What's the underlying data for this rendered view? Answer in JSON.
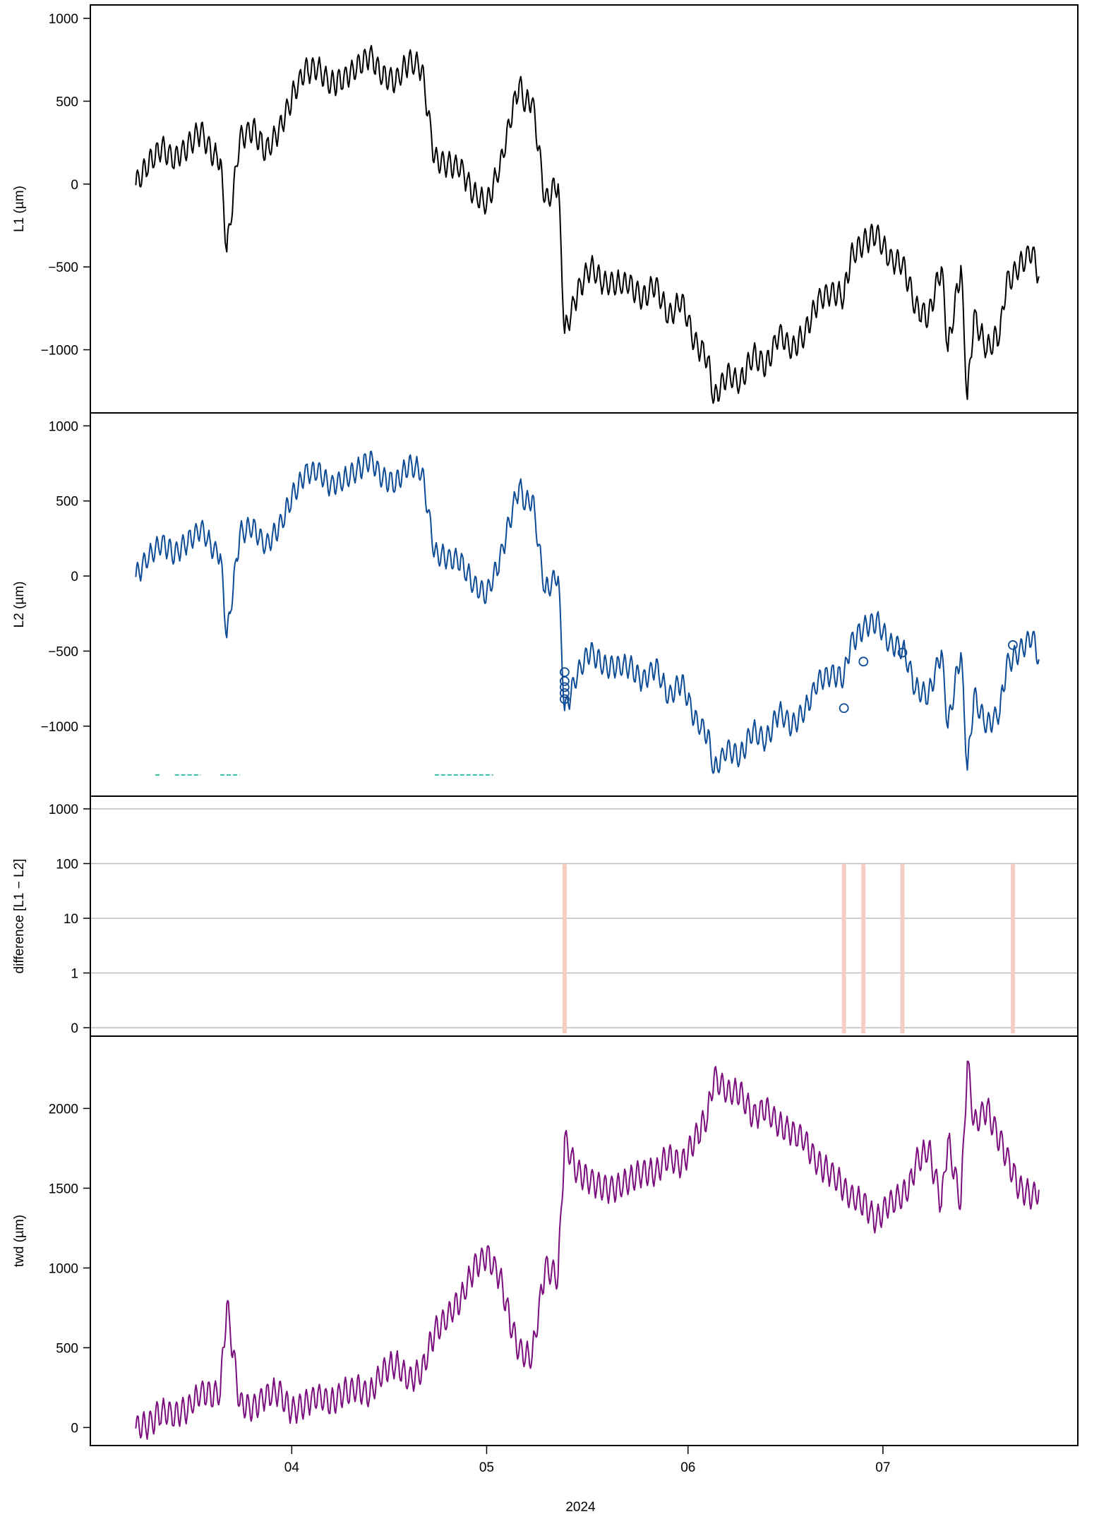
{
  "chart_data": [
    {
      "type": "line",
      "ylabel": "L1 (µm)",
      "ylim": [
        -1330,
        1030
      ],
      "yticks": [
        1000,
        500,
        0,
        -500,
        -1000
      ],
      "ytick_labels": [
        "1000",
        "500",
        "0",
        "−500",
        "−1000"
      ],
      "grid": false,
      "color": "#000000",
      "series": [
        {
          "x": [
            "2024-03-08",
            "2024-03-10",
            "2024-03-12",
            "2024-03-14",
            "2024-03-16",
            "2024-03-18",
            "2024-03-20",
            "2024-03-21",
            "2024-03-22",
            "2024-03-24",
            "2024-03-26",
            "2024-03-28",
            "2024-03-30",
            "2024-04-01",
            "2024-04-03",
            "2024-04-05",
            "2024-04-07",
            "2024-04-09",
            "2024-04-11",
            "2024-04-13",
            "2024-04-15",
            "2024-04-17",
            "2024-04-19",
            "2024-04-21",
            "2024-04-23",
            "2024-04-25",
            "2024-04-27",
            "2024-04-29",
            "2024-05-01",
            "2024-05-03",
            "2024-05-05",
            "2024-05-06",
            "2024-05-07",
            "2024-05-08",
            "2024-05-10",
            "2024-05-12",
            "2024-05-13",
            "2024-05-15",
            "2024-05-17",
            "2024-05-19",
            "2024-05-21",
            "2024-05-23",
            "2024-05-25",
            "2024-05-27",
            "2024-05-29",
            "2024-05-31",
            "2024-06-02",
            "2024-06-04",
            "2024-06-05",
            "2024-06-07",
            "2024-06-09",
            "2024-06-11",
            "2024-06-13",
            "2024-06-15",
            "2024-06-17",
            "2024-06-19",
            "2024-06-21",
            "2024-06-23",
            "2024-06-25",
            "2024-06-26",
            "2024-06-28",
            "2024-06-30",
            "2024-07-02",
            "2024-07-04",
            "2024-07-05",
            "2024-07-06",
            "2024-07-08",
            "2024-07-10",
            "2024-07-11",
            "2024-07-13",
            "2024-07-14",
            "2024-07-15",
            "2024-07-17",
            "2024-07-19",
            "2024-07-20",
            "2024-07-22",
            "2024-07-24",
            "2024-07-25"
          ],
          "y": [
            0,
            130,
            220,
            150,
            230,
            320,
            170,
            150,
            -410,
            280,
            330,
            200,
            320,
            520,
            680,
            700,
            600,
            640,
            700,
            780,
            650,
            620,
            740,
            700,
            150,
            120,
            100,
            -60,
            -120,
            100,
            450,
            600,
            480,
            520,
            -100,
            10,
            -900,
            -650,
            -500,
            -600,
            -600,
            -600,
            -700,
            -600,
            -800,
            -700,
            -950,
            -1050,
            -1300,
            -1150,
            -1200,
            -1030,
            -1100,
            -900,
            -1000,
            -900,
            -700,
            -650,
            -680,
            -450,
            -350,
            -300,
            -450,
            -480,
            -600,
            -750,
            -800,
            -500,
            -1000,
            -500,
            -1300,
            -800,
            -1000,
            -900,
            -600,
            -500,
            -400,
            -560
          ]
        }
      ]
    },
    {
      "type": "line",
      "ylabel": "L2 (µm)",
      "ylim": [
        -1410,
        1030
      ],
      "yticks": [
        1000,
        500,
        0,
        -500,
        -1000
      ],
      "ytick_labels": [
        "1000",
        "500",
        "0",
        "−500",
        "−1000"
      ],
      "grid": false,
      "color": "#0f4c96",
      "series": [
        {
          "x": [
            "2024-03-08",
            "2024-03-10",
            "2024-03-12",
            "2024-03-14",
            "2024-03-16",
            "2024-03-18",
            "2024-03-20",
            "2024-03-21",
            "2024-03-22",
            "2024-03-24",
            "2024-03-26",
            "2024-03-28",
            "2024-03-30",
            "2024-04-01",
            "2024-04-03",
            "2024-04-05",
            "2024-04-07",
            "2024-04-09",
            "2024-04-11",
            "2024-04-13",
            "2024-04-15",
            "2024-04-17",
            "2024-04-19",
            "2024-04-21",
            "2024-04-23",
            "2024-04-25",
            "2024-04-27",
            "2024-04-29",
            "2024-05-01",
            "2024-05-03",
            "2024-05-05",
            "2024-05-06",
            "2024-05-07",
            "2024-05-08",
            "2024-05-10",
            "2024-05-12",
            "2024-05-13",
            "2024-05-15",
            "2024-05-17",
            "2024-05-19",
            "2024-05-21",
            "2024-05-23",
            "2024-05-25",
            "2024-05-27",
            "2024-05-29",
            "2024-05-31",
            "2024-06-02",
            "2024-06-04",
            "2024-06-05",
            "2024-06-07",
            "2024-06-09",
            "2024-06-11",
            "2024-06-13",
            "2024-06-15",
            "2024-06-17",
            "2024-06-19",
            "2024-06-21",
            "2024-06-23",
            "2024-06-25",
            "2024-06-26",
            "2024-06-28",
            "2024-06-30",
            "2024-07-02",
            "2024-07-04",
            "2024-07-05",
            "2024-07-06",
            "2024-07-08",
            "2024-07-10",
            "2024-07-11",
            "2024-07-13",
            "2024-07-14",
            "2024-07-15",
            "2024-07-17",
            "2024-07-19",
            "2024-07-20",
            "2024-07-22",
            "2024-07-24",
            "2024-07-25"
          ],
          "y": [
            0,
            130,
            220,
            150,
            230,
            320,
            170,
            150,
            -410,
            280,
            330,
            200,
            320,
            520,
            680,
            700,
            600,
            640,
            700,
            780,
            650,
            620,
            740,
            700,
            150,
            120,
            100,
            -60,
            -120,
            100,
            450,
            600,
            480,
            520,
            -100,
            10,
            -900,
            -650,
            -500,
            -600,
            -600,
            -600,
            -700,
            -600,
            -800,
            -700,
            -950,
            -1050,
            -1300,
            -1150,
            -1200,
            -1030,
            -1100,
            -900,
            -1000,
            -900,
            -700,
            -650,
            -680,
            -450,
            -350,
            -300,
            -450,
            -480,
            -600,
            -750,
            -800,
            -500,
            -1000,
            -500,
            -1300,
            -800,
            -1000,
            -900,
            -600,
            -500,
            -400,
            -560
          ]
        }
      ],
      "markers": [
        {
          "x": "2024-05-13",
          "y": -640
        },
        {
          "x": "2024-05-13",
          "y": -700
        },
        {
          "x": "2024-05-13",
          "y": -740
        },
        {
          "x": "2024-05-13",
          "y": -780
        },
        {
          "x": "2024-05-13",
          "y": -820
        },
        {
          "x": "2024-06-25",
          "y": -880
        },
        {
          "x": "2024-06-28",
          "y": -570
        },
        {
          "x": "2024-07-04",
          "y": -510
        },
        {
          "x": "2024-07-21",
          "y": -460
        }
      ],
      "flag_segments": [
        [
          "2024-03-11",
          "2024-03-12"
        ],
        [
          "2024-03-14",
          "2024-03-18"
        ],
        [
          "2024-03-21",
          "2024-03-24"
        ],
        [
          "2024-04-23",
          "2024-05-02"
        ]
      ],
      "flag_y": -1325,
      "flag_color": "#40c0a8"
    },
    {
      "type": "line",
      "ylabel": "difference [L1 − L2]",
      "scale": "log",
      "ylim": [
        0,
        1000
      ],
      "yticks": [
        1000,
        100,
        10,
        1,
        0
      ],
      "ytick_labels": [
        "1000",
        "100",
        "10",
        "1",
        "0"
      ],
      "grid": true,
      "bars": [
        {
          "x": "2024-05-13",
          "value": 100
        },
        {
          "x": "2024-06-25",
          "value": 100
        },
        {
          "x": "2024-06-28",
          "value": 100
        },
        {
          "x": "2024-07-04",
          "value": 100
        },
        {
          "x": "2024-07-21",
          "value": 100
        }
      ],
      "color": "#f5cdc4"
    },
    {
      "type": "line",
      "ylabel": "twd (µm)",
      "ylim": [
        -60,
        2400
      ],
      "yticks": [
        2000,
        1500,
        1000,
        500,
        0
      ],
      "ytick_labels": [
        "2000",
        "1500",
        "1000",
        "500",
        "0"
      ],
      "grid": false,
      "color": "#7b0f7e",
      "series": [
        {
          "x": [
            "2024-03-08",
            "2024-03-10",
            "2024-03-12",
            "2024-03-14",
            "2024-03-16",
            "2024-03-18",
            "2024-03-20",
            "2024-03-21",
            "2024-03-22",
            "2024-03-24",
            "2024-03-26",
            "2024-03-28",
            "2024-03-30",
            "2024-04-01",
            "2024-04-03",
            "2024-04-05",
            "2024-04-07",
            "2024-04-09",
            "2024-04-11",
            "2024-04-13",
            "2024-04-15",
            "2024-04-17",
            "2024-04-19",
            "2024-04-21",
            "2024-04-23",
            "2024-04-25",
            "2024-04-27",
            "2024-04-29",
            "2024-05-01",
            "2024-05-03",
            "2024-05-05",
            "2024-05-06",
            "2024-05-07",
            "2024-05-08",
            "2024-05-10",
            "2024-05-12",
            "2024-05-13",
            "2024-05-15",
            "2024-05-17",
            "2024-05-19",
            "2024-05-21",
            "2024-05-23",
            "2024-05-25",
            "2024-05-27",
            "2024-05-29",
            "2024-05-31",
            "2024-06-02",
            "2024-06-04",
            "2024-06-05",
            "2024-06-07",
            "2024-06-09",
            "2024-06-11",
            "2024-06-13",
            "2024-06-15",
            "2024-06-17",
            "2024-06-19",
            "2024-06-21",
            "2024-06-23",
            "2024-06-25",
            "2024-06-26",
            "2024-06-28",
            "2024-06-30",
            "2024-07-02",
            "2024-07-04",
            "2024-07-05",
            "2024-07-06",
            "2024-07-08",
            "2024-07-10",
            "2024-07-11",
            "2024-07-13",
            "2024-07-14",
            "2024-07-15",
            "2024-07-17",
            "2024-07-19",
            "2024-07-20",
            "2024-07-22",
            "2024-07-24",
            "2024-07-25"
          ],
          "y": [
            0,
            20,
            100,
            80,
            120,
            220,
            200,
            220,
            780,
            150,
            120,
            200,
            230,
            100,
            150,
            200,
            150,
            220,
            250,
            200,
            350,
            400,
            300,
            350,
            600,
            700,
            800,
            1000,
            1080,
            950,
            600,
            480,
            450,
            450,
            1000,
            950,
            1800,
            1600,
            1550,
            1500,
            1500,
            1550,
            1600,
            1600,
            1700,
            1650,
            1800,
            1950,
            2200,
            2100,
            2100,
            1950,
            2000,
            1900,
            1850,
            1800,
            1650,
            1600,
            1500,
            1450,
            1400,
            1300,
            1400,
            1450,
            1500,
            1650,
            1750,
            1400,
            1800,
            1400,
            2300,
            1900,
            2000,
            1800,
            1700,
            1500,
            1450,
            1480
          ]
        }
      ]
    }
  ],
  "x_axis": {
    "ticks": [
      "2024-04-01",
      "2024-05-01",
      "2024-06-01",
      "2024-07-01"
    ],
    "tick_labels": [
      "04",
      "05",
      "06",
      "07"
    ],
    "label": "2024",
    "range": [
      "2024-03-01",
      "2024-07-31"
    ]
  }
}
